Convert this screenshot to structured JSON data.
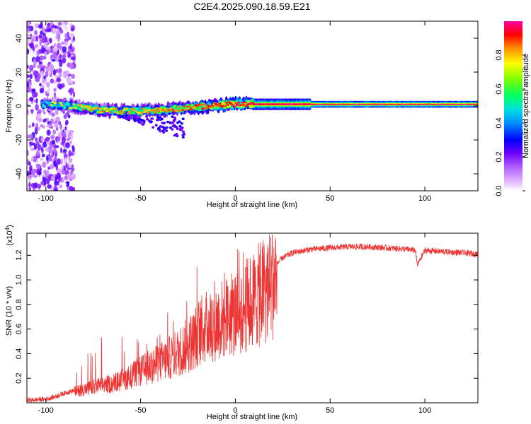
{
  "title": "C2E4.2025.090.18.59.E21",
  "chart_data": [
    {
      "type": "heatmap",
      "xlabel": "Height of straight line (km)",
      "ylabel": "Frequency (Hz)",
      "xlim": [
        -110,
        128
      ],
      "ylim": [
        -50,
        50
      ],
      "xticks": [
        -100,
        -50,
        0,
        50,
        100
      ],
      "yticks": [
        -40,
        -20,
        0,
        20,
        40
      ],
      "colorbar": {
        "label": "Normalized spectral amplitude",
        "range": [
          0,
          1
        ],
        "ticks": [
          "0.0",
          "0.2",
          "0.4",
          "0.6",
          "0.8"
        ],
        "colors": [
          "#ffffff",
          "#cc88ff",
          "#8800ff",
          "#0000ff",
          "#00ccff",
          "#00ff88",
          "#66ff00",
          "#ffff00",
          "#ff8800",
          "#ff0000",
          "#ff00aa"
        ]
      },
      "ridge": {
        "x": [
          -110,
          -100,
          -90,
          -80,
          -70,
          -60,
          -50,
          -40,
          -30,
          -20,
          -10,
          0,
          20,
          40,
          60,
          80,
          100,
          128
        ],
        "freq": [
          1,
          1,
          0.5,
          -1,
          -2.5,
          -3,
          -3,
          -2.5,
          -1.5,
          -0.5,
          0.5,
          1,
          1,
          1,
          1,
          1,
          1,
          1
        ],
        "amplitude": [
          0.2,
          0.25,
          0.35,
          0.5,
          0.55,
          0.5,
          0.5,
          0.55,
          0.6,
          0.7,
          0.8,
          0.85,
          0.85,
          0.9,
          0.95,
          0.95,
          0.95,
          0.95
        ]
      }
    },
    {
      "type": "line",
      "xlabel": "Height of straight line (km)",
      "ylabel": "SNR (10 * v/v)",
      "y_scale_label": "(x10",
      "y_scale_exp": "4",
      "y_scale_suffix": ")",
      "xlim": [
        -110,
        128
      ],
      "ylim": [
        0,
        1.38
      ],
      "xticks": [
        -100,
        -50,
        0,
        50,
        100
      ],
      "yticks": [
        0.2,
        0.4,
        0.6,
        0.8,
        1.0,
        1.2
      ],
      "color": "#ee3333",
      "series": [
        {
          "x": [
            -110,
            -100,
            -95,
            -90,
            -85,
            -80,
            -75,
            -70,
            -65,
            -60,
            -55,
            -50,
            -45,
            -40,
            -35,
            -30,
            -25,
            -22,
            -20,
            -15,
            -10,
            -5,
            0,
            5,
            10,
            15,
            20,
            25,
            30,
            40,
            50,
            60,
            70,
            80,
            90,
            95,
            96,
            100,
            110,
            120,
            128
          ],
          "y": [
            0.02,
            0.03,
            0.05,
            0.08,
            0.1,
            0.12,
            0.14,
            0.16,
            0.17,
            0.2,
            0.24,
            0.28,
            0.32,
            0.36,
            0.4,
            0.45,
            0.52,
            0.56,
            0.62,
            0.68,
            0.72,
            0.76,
            0.8,
            0.86,
            0.92,
            1.0,
            1.1,
            1.18,
            1.22,
            1.25,
            1.26,
            1.27,
            1.27,
            1.26,
            1.25,
            1.24,
            1.12,
            1.24,
            1.23,
            1.22,
            1.21
          ]
        }
      ]
    }
  ]
}
